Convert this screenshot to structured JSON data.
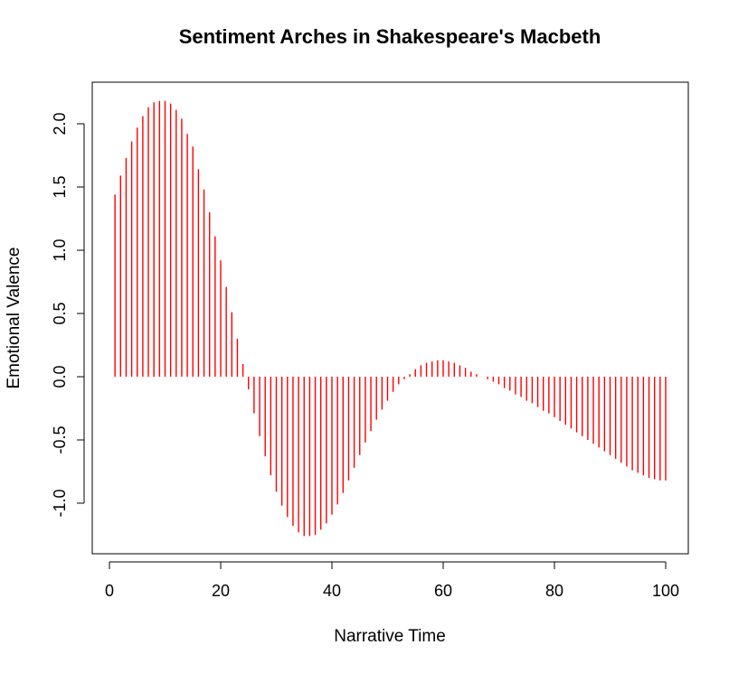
{
  "chart_data": {
    "type": "bar",
    "title": "Sentiment Arches in Shakespeare's Macbeth",
    "xlabel": "Narrative Time",
    "ylabel": "Emotional Valence",
    "xlim": [
      1,
      100
    ],
    "ylim": [
      -1.27,
      2.18
    ],
    "x_ticks": [
      0,
      20,
      40,
      60,
      80,
      100
    ],
    "x_tick_labels": [
      "0",
      "20",
      "40",
      "60",
      "80",
      "100"
    ],
    "y_ticks": [
      -1.0,
      -0.5,
      0.0,
      0.5,
      1.0,
      1.5,
      2.0
    ],
    "y_tick_labels": [
      "-1.0",
      "-0.5",
      "0.0",
      "0.5",
      "1.0",
      "1.5",
      "2.0"
    ],
    "grid": false,
    "bar_color": "#ff0000",
    "series": [
      {
        "x": [
          1,
          2,
          3,
          4,
          5,
          6,
          7,
          8,
          9,
          10,
          11,
          12,
          13,
          14,
          15,
          16,
          17,
          18,
          19,
          20,
          21,
          22,
          23,
          24,
          25,
          26,
          27,
          28,
          29,
          30,
          31,
          32,
          33,
          34,
          35,
          36,
          37,
          38,
          39,
          40,
          41,
          42,
          43,
          44,
          45,
          46,
          47,
          48,
          49,
          50,
          51,
          52,
          53,
          54,
          55,
          56,
          57,
          58,
          59,
          60,
          61,
          62,
          63,
          64,
          65,
          66,
          67,
          68,
          69,
          70,
          71,
          72,
          73,
          74,
          75,
          76,
          77,
          78,
          79,
          80,
          81,
          82,
          83,
          84,
          85,
          86,
          87,
          88,
          89,
          90,
          91,
          92,
          93,
          94,
          95,
          96,
          97,
          98,
          99,
          100
        ],
        "values": [
          1.44,
          1.59,
          1.73,
          1.86,
          1.97,
          2.06,
          2.13,
          2.17,
          2.18,
          2.18,
          2.16,
          2.11,
          2.04,
          1.92,
          1.82,
          1.64,
          1.48,
          1.3,
          1.11,
          0.92,
          0.71,
          0.51,
          0.3,
          0.1,
          -0.1,
          -0.29,
          -0.47,
          -0.63,
          -0.78,
          -0.91,
          -1.02,
          -1.11,
          -1.18,
          -1.23,
          -1.26,
          -1.26,
          -1.25,
          -1.21,
          -1.16,
          -1.09,
          -1.01,
          -0.92,
          -0.82,
          -0.72,
          -0.62,
          -0.52,
          -0.43,
          -0.34,
          -0.26,
          -0.19,
          -0.12,
          -0.06,
          -0.02,
          0.02,
          0.06,
          0.09,
          0.11,
          0.12,
          0.13,
          0.13,
          0.12,
          0.11,
          0.09,
          0.07,
          0.04,
          0.02,
          0.0,
          -0.02,
          -0.04,
          -0.06,
          -0.09,
          -0.11,
          -0.14,
          -0.16,
          -0.19,
          -0.21,
          -0.24,
          -0.27,
          -0.29,
          -0.32,
          -0.35,
          -0.38,
          -0.41,
          -0.44,
          -0.47,
          -0.5,
          -0.53,
          -0.56,
          -0.59,
          -0.62,
          -0.65,
          -0.68,
          -0.71,
          -0.74,
          -0.76,
          -0.78,
          -0.8,
          -0.81,
          -0.82,
          -0.82
        ]
      }
    ]
  }
}
